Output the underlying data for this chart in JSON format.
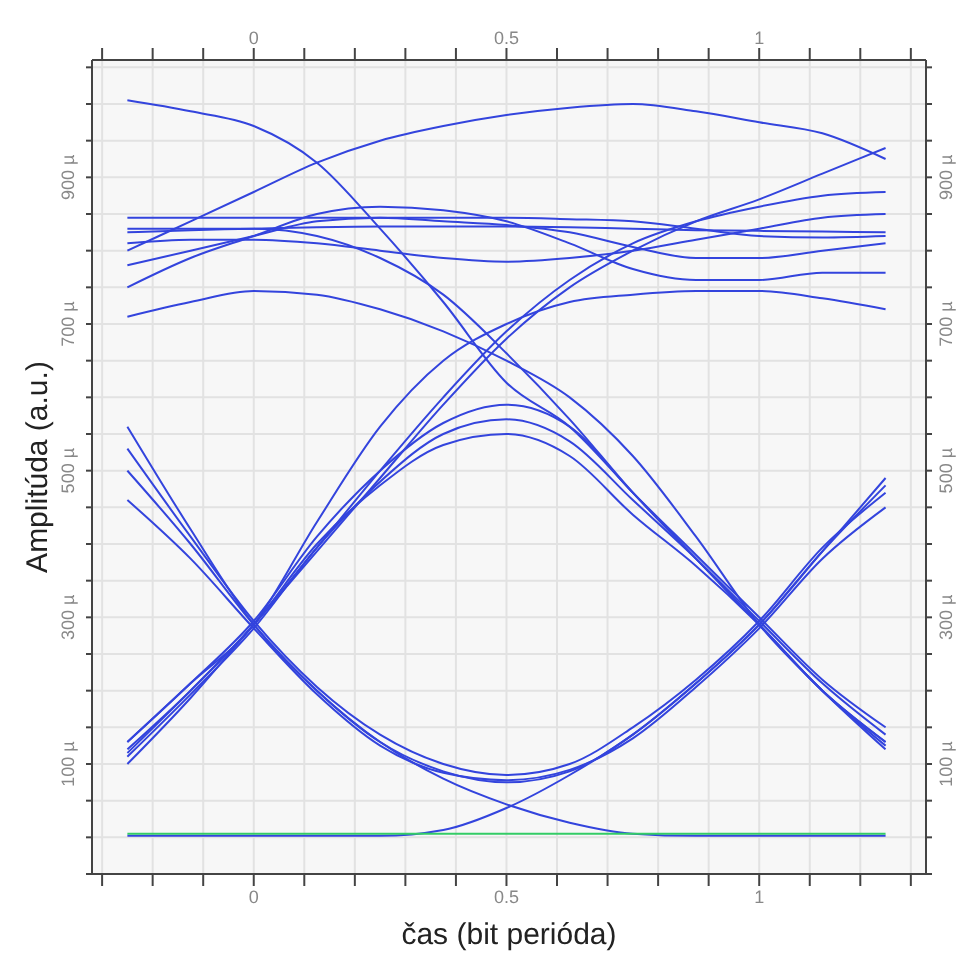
{
  "chart_data": {
    "type": "line",
    "xlabel": "čas (bit perióda)",
    "ylabel": "Amplitúda (a.u.)",
    "x": [
      -0.25,
      -0.125,
      0,
      0.125,
      0.25,
      0.375,
      0.5,
      0.625,
      0.75,
      0.875,
      1,
      1.125,
      1.25
    ],
    "series": [
      {
        "color": "#3344dd",
        "values": [
          500,
          400,
          290,
          200,
          130,
          90,
          75,
          90,
          140,
          210,
          290,
          390,
          480
        ]
      },
      {
        "color": "#3344dd",
        "values": [
          530,
          410,
          295,
          205,
          140,
          100,
          85,
          100,
          150,
          215,
          295,
          395,
          470
        ]
      },
      {
        "color": "#3344dd",
        "values": [
          460,
          380,
          285,
          195,
          125,
          88,
          78,
          92,
          135,
          205,
          285,
          380,
          450
        ]
      },
      {
        "color": "#3344dd",
        "values": [
          120,
          200,
          290,
          400,
          480,
          535,
          550,
          520,
          440,
          370,
          290,
          200,
          130
        ]
      },
      {
        "color": "#3344dd",
        "values": [
          110,
          195,
          285,
          395,
          485,
          550,
          570,
          540,
          460,
          380,
          295,
          210,
          140
        ]
      },
      {
        "color": "#3344dd",
        "values": [
          130,
          210,
          295,
          410,
          500,
          565,
          590,
          560,
          470,
          385,
          300,
          215,
          150
        ]
      },
      {
        "color": "#3344dd",
        "values": [
          560,
          420,
          290,
          200,
          130,
          80,
          45,
          20,
          5,
          2,
          2,
          2,
          2
        ]
      },
      {
        "color": "#3344dd",
        "values": [
          2,
          2,
          2,
          2,
          2,
          10,
          40,
          85,
          140,
          210,
          290,
          390,
          490
        ]
      },
      {
        "color": "#3344dd",
        "values": [
          100,
          190,
          290,
          390,
          490,
          590,
          680,
          750,
          800,
          840,
          870,
          905,
          940
        ]
      },
      {
        "color": "#3344dd",
        "values": [
          130,
          210,
          290,
          430,
          560,
          650,
          700,
          730,
          740,
          745,
          745,
          735,
          720
        ]
      },
      {
        "color": "#3344dd",
        "values": [
          115,
          200,
          290,
          395,
          500,
          600,
          690,
          760,
          810,
          840,
          860,
          875,
          880
        ]
      },
      {
        "color": "#3344dd",
        "values": [
          1005,
          990,
          970,
          920,
          830,
          730,
          620,
          560,
          470,
          380,
          290,
          200,
          125
        ]
      },
      {
        "color": "#3344dd",
        "values": [
          800,
          840,
          880,
          920,
          950,
          970,
          985,
          995,
          1000,
          990,
          975,
          960,
          925
        ]
      },
      {
        "color": "#3344dd",
        "values": [
          825,
          828,
          830,
          832,
          833,
          833,
          833,
          832,
          830,
          828,
          827,
          826,
          825
        ]
      },
      {
        "color": "#3344dd",
        "values": [
          845,
          845,
          845,
          845,
          845,
          845,
          845,
          843,
          840,
          830,
          820,
          818,
          820
        ]
      },
      {
        "color": "#3344dd",
        "values": [
          780,
          800,
          820,
          840,
          845,
          840,
          835,
          825,
          805,
          790,
          790,
          800,
          810
        ]
      },
      {
        "color": "#3344dd",
        "values": [
          750,
          790,
          820,
          850,
          860,
          855,
          840,
          810,
          775,
          760,
          760,
          770,
          770
        ]
      },
      {
        "color": "#3344dd",
        "values": [
          710,
          730,
          745,
          740,
          720,
          690,
          650,
          600,
          520,
          410,
          290,
          200,
          120
        ]
      },
      {
        "color": "#3344dd",
        "values": [
          830,
          830,
          830,
          820,
          790,
          740,
          660,
          570,
          470,
          380,
          290,
          200,
          130
        ]
      },
      {
        "color": "#3344dd",
        "values": [
          810,
          815,
          815,
          810,
          800,
          790,
          785,
          790,
          800,
          815,
          830,
          845,
          850
        ]
      },
      {
        "color": "#33cc66",
        "values": [
          5,
          5,
          5,
          5,
          5,
          5,
          5,
          5,
          5,
          5,
          5,
          5,
          5
        ]
      }
    ],
    "xlim": [
      -0.32,
      1.33
    ],
    "xticks": [
      {
        "value": -0.3,
        "label": null
      },
      {
        "value": -0.2,
        "label": null
      },
      {
        "value": -0.1,
        "label": null
      },
      0,
      {
        "value": 0.1,
        "label": null
      },
      {
        "value": 0.2,
        "label": null
      },
      {
        "value": 0.3,
        "label": null
      },
      {
        "value": 0.4,
        "label": null
      },
      0.5,
      {
        "value": 0.6,
        "label": null
      },
      {
        "value": 0.7,
        "label": null
      },
      {
        "value": 0.8,
        "label": null
      },
      {
        "value": 0.9,
        "label": null
      },
      1,
      {
        "value": 1.1,
        "label": null
      },
      {
        "value": 1.2,
        "label": null
      },
      {
        "value": 1.3,
        "label": null
      }
    ],
    "x2lim": [
      -0.32,
      1.33
    ],
    "x2ticks": [
      {
        "value": -0.3,
        "label": null
      },
      {
        "value": -0.2,
        "label": null
      },
      {
        "value": -0.1,
        "label": null
      },
      0,
      {
        "value": 0.1,
        "label": null
      },
      {
        "value": 0.2,
        "label": null
      },
      {
        "value": 0.3,
        "label": null
      },
      {
        "value": 0.4,
        "label": null
      },
      0.5,
      {
        "value": 0.6,
        "label": null
      },
      {
        "value": 0.7,
        "label": null
      },
      {
        "value": 0.8,
        "label": null
      },
      {
        "value": 0.9,
        "label": null
      },
      1,
      {
        "value": 1.1,
        "label": null
      },
      {
        "value": 1.2,
        "label": null
      },
      {
        "value": 1.3,
        "label": null
      }
    ],
    "ylim": [
      -50,
      1060
    ],
    "yticks": [
      {
        "value": -50,
        "label": null
      },
      {
        "value": 0,
        "label": null
      },
      {
        "value": 50,
        "label": null
      },
      {
        "value": 100,
        "label": "100 µ"
      },
      {
        "value": 150,
        "label": null
      },
      {
        "value": 200,
        "label": null
      },
      {
        "value": 250,
        "label": null
      },
      {
        "value": 300,
        "label": "300 µ"
      },
      {
        "value": 350,
        "label": null
      },
      {
        "value": 400,
        "label": null
      },
      {
        "value": 450,
        "label": null
      },
      {
        "value": 500,
        "label": "500 µ"
      },
      {
        "value": 550,
        "label": null
      },
      {
        "value": 600,
        "label": null
      },
      {
        "value": 650,
        "label": null
      },
      {
        "value": 700,
        "label": "700 µ"
      },
      {
        "value": 750,
        "label": null
      },
      {
        "value": 800,
        "label": null
      },
      {
        "value": 850,
        "label": null
      },
      {
        "value": 900,
        "label": "900 µ"
      },
      {
        "value": 950,
        "label": null
      },
      {
        "value": 1000,
        "label": null
      },
      {
        "value": 1050,
        "label": null
      }
    ],
    "y2lim": [
      -50,
      1060
    ],
    "y2ticks": [
      {
        "value": -50,
        "label": null
      },
      {
        "value": 0,
        "label": null
      },
      {
        "value": 50,
        "label": null
      },
      {
        "value": 100,
        "label": "100 µ"
      },
      {
        "value": 150,
        "label": null
      },
      {
        "value": 200,
        "label": null
      },
      {
        "value": 250,
        "label": null
      },
      {
        "value": 300,
        "label": "300 µ"
      },
      {
        "value": 350,
        "label": null
      },
      {
        "value": 400,
        "label": null
      },
      {
        "value": 450,
        "label": null
      },
      {
        "value": 500,
        "label": "500 µ"
      },
      {
        "value": 550,
        "label": null
      },
      {
        "value": 600,
        "label": null
      },
      {
        "value": 650,
        "label": null
      },
      {
        "value": 700,
        "label": "700 µ"
      },
      {
        "value": 750,
        "label": null
      },
      {
        "value": 800,
        "label": null
      },
      {
        "value": 850,
        "label": null
      },
      {
        "value": 900,
        "label": "900 µ"
      },
      {
        "value": 950,
        "label": null
      },
      {
        "value": 1000,
        "label": null
      },
      {
        "value": 1050,
        "label": null
      }
    ],
    "grid": true,
    "legend": false,
    "marker": "none",
    "line_style": "solid"
  }
}
